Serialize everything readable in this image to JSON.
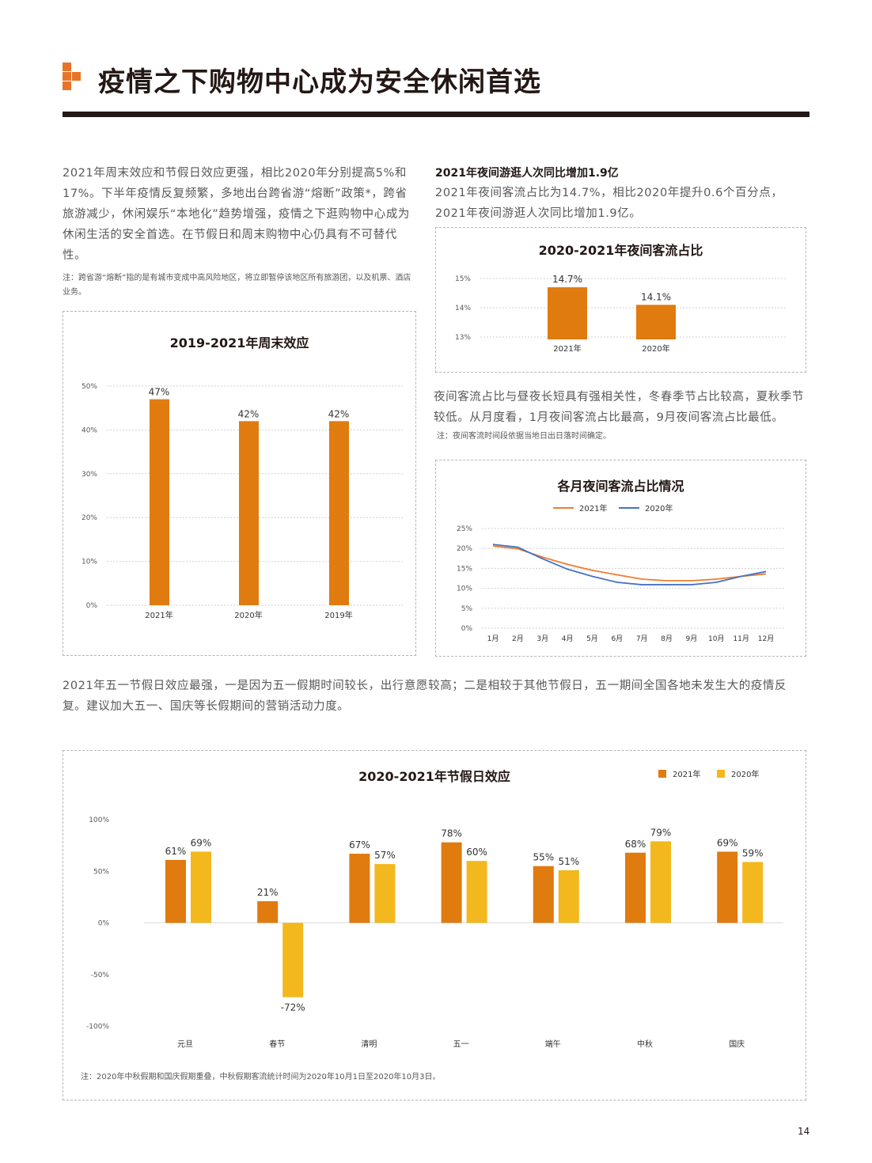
{
  "header": {
    "title": "疫情之下购物中心成为安全休闲首选",
    "accent": "#e8742a"
  },
  "left": {
    "paragraph": "2021年周末效应和节假日效应更强，相比2020年分别提高5%和17%。下半年疫情反复频繁，多地出台跨省游“熔断”政策*，跨省旅游减少，休闲娱乐“本地化”趋势增强，疫情之下逛购物中心成为休闲生活的安全首选。在节假日和周末购物中心仍具有不可替代性。",
    "note": "注：跨省游“熔断”指的是有城市变成中高风险地区，将立即暂停该地区所有旅游团，以及机票、酒店业务。"
  },
  "right": {
    "heading": "2021年夜间游逛人次同比增加1.9亿",
    "paragraph": "2021年夜间客流占比为14.7%，相比2020年提升0.6个百分点，2021年夜间游逛人次同比增加1.9亿。",
    "paragraph2": "夜间客流占比与昼夜长短具有强相关性，冬春季节占比较高，夏秋季节较低。从月度看，1月夜间客流占比最高，9月夜间客流占比最低。",
    "note2": "注：夜间客流时间段依据当地日出日落时间确定。"
  },
  "middle": {
    "paragraph": "2021年五一节假日效应最强，一是因为五一假期时间较长，出行意愿较高；二是相较于其他节假日，五一期间全国各地未发生大的疫情反复。建议加大五一、国庆等长假期间的营销活动力度。"
  },
  "footer": {
    "note": "注：2020年中秋假期和国庆假期重叠，中秋假期客流统计时间为2020年10月1日至2020年10月3日。",
    "page_number": "14"
  },
  "chart_data": [
    {
      "type": "bar",
      "title": "2019-2021年周末效应",
      "categories": [
        "2021年",
        "2020年",
        "2019年"
      ],
      "values": [
        47,
        42,
        42
      ],
      "value_labels": [
        "47%",
        "42%",
        "42%"
      ],
      "yticks": [
        "0%",
        "10%",
        "20%",
        "30%",
        "40%",
        "50%"
      ],
      "ylim": [
        0,
        50
      ],
      "color": "#e07b10",
      "grid": true
    },
    {
      "type": "bar",
      "title": "2020-2021年夜间客流占比",
      "categories": [
        "2021年",
        "2020年"
      ],
      "values": [
        14.7,
        14.1
      ],
      "value_labels": [
        "14.7%",
        "14.1%"
      ],
      "yticks": [
        "13%",
        "14%",
        "15%"
      ],
      "ylim": [
        13,
        15
      ],
      "color": "#e07b10",
      "grid": true
    },
    {
      "type": "line",
      "title": "各月夜间客流占比情况",
      "categories": [
        "1月",
        "2月",
        "3月",
        "4月",
        "5月",
        "6月",
        "7月",
        "8月",
        "9月",
        "10月",
        "11月",
        "12月"
      ],
      "series": [
        {
          "name": "2021年",
          "color": "#ed7d31",
          "values": [
            20.6,
            19.9,
            17.8,
            16.0,
            14.5,
            13.4,
            12.3,
            11.9,
            11.9,
            12.3,
            13.0,
            13.6
          ]
        },
        {
          "name": "2020年",
          "color": "#4472c4",
          "values": [
            21.0,
            20.3,
            17.4,
            14.8,
            13.0,
            11.5,
            10.9,
            10.9,
            10.9,
            11.5,
            13.0,
            14.2
          ]
        }
      ],
      "yticks": [
        "0%",
        "5%",
        "10%",
        "15%",
        "20%",
        "25%"
      ],
      "ylim": [
        0,
        25
      ],
      "legend": "top"
    },
    {
      "type": "bar",
      "title": "2020-2021年节假日效应",
      "categories": [
        "元旦",
        "春节",
        "清明",
        "五一",
        "端午",
        "中秋",
        "国庆"
      ],
      "series": [
        {
          "name": "2021年",
          "color": "#e07b10",
          "values": [
            61,
            21,
            67,
            78,
            55,
            68,
            69
          ],
          "labels": [
            "61%",
            "21%",
            "67%",
            "78%",
            "55%",
            "68%",
            "69%"
          ]
        },
        {
          "name": "2020年",
          "color": "#f2b81d",
          "values": [
            69,
            -72,
            57,
            60,
            51,
            79,
            59
          ],
          "labels": [
            "69%",
            "-72%",
            "57%",
            "60%",
            "51%",
            "79%",
            "59%"
          ]
        }
      ],
      "yticks": [
        "-100%",
        "-50%",
        "0%",
        "50%",
        "100%"
      ],
      "ylim": [
        -100,
        100
      ],
      "legend": "top-right"
    }
  ]
}
